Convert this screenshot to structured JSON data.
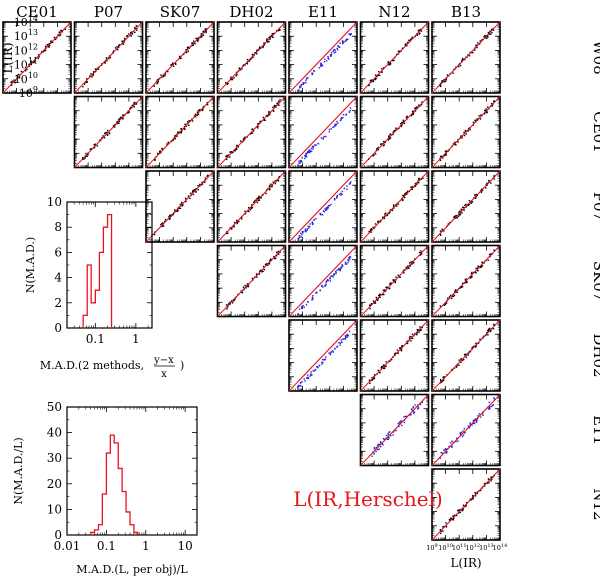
{
  "chart_data": [
    {
      "type": "scatter",
      "title": "",
      "layout": "lower-triangular grid of pairwise scatter plots",
      "column_labels": [
        "CE01",
        "P07",
        "SK07",
        "DH02",
        "E11",
        "N12",
        "B13"
      ],
      "row_labels": [
        "W08",
        "CE01",
        "P07",
        "SK07",
        "DH02",
        "E11",
        "N12"
      ],
      "xlabel": "L(IR)",
      "ylabel": "L(IR)",
      "xlim": [
        9,
        14
      ],
      "ylim": [
        9,
        14
      ],
      "tick_labels": [
        "10^9",
        "10^10",
        "10^11",
        "10^12",
        "10^13",
        "10^14"
      ],
      "reference_line": "y = x",
      "series_colors": {
        "points": "#000000",
        "fit": "#e8141c",
        "e11_points": "#1d22e0"
      },
      "annotation": "L(IR,Herschel)"
    },
    {
      "type": "bar",
      "style": "step histogram",
      "xlabel": "M.A.D.(2 methods, (y−x)/x)",
      "xlabel_main": "M.A.D.(2 methods,",
      "xlabel_frac_num": "y−x",
      "xlabel_frac_den": "x",
      "ylabel": "N(M.A.D.)",
      "xscale": "log",
      "xlim": [
        0.02,
        2.5
      ],
      "ylim": [
        0,
        10
      ],
      "xtick_labels": [
        "0.1",
        "1"
      ],
      "ytick_labels": [
        "0",
        "2",
        "4",
        "6",
        "8",
        "10"
      ],
      "bin_edges": [
        0.05,
        0.063,
        0.079,
        0.1,
        0.126,
        0.158,
        0.2,
        0.251
      ],
      "values": [
        1,
        5,
        2,
        3,
        6,
        8,
        9
      ],
      "color": "#e8141c"
    },
    {
      "type": "bar",
      "style": "step histogram",
      "xlabel": "M.A.D.(L, per obj)/L",
      "ylabel": "N(M.A.D./L)",
      "xscale": "log",
      "xlim": [
        0.01,
        20
      ],
      "ylim": [
        0,
        50
      ],
      "xtick_labels": [
        "0.01",
        "0.1",
        "1",
        "10"
      ],
      "ytick_labels": [
        "0",
        "10",
        "20",
        "30",
        "40",
        "50"
      ],
      "bin_edges": [
        0.04,
        0.05,
        0.063,
        0.079,
        0.1,
        0.126,
        0.158,
        0.2,
        0.251,
        0.316,
        0.398,
        0.501,
        0.631
      ],
      "values": [
        1,
        2,
        4,
        16,
        32,
        39,
        36,
        26,
        17,
        9,
        4,
        1
      ],
      "color": "#e8141c"
    }
  ]
}
